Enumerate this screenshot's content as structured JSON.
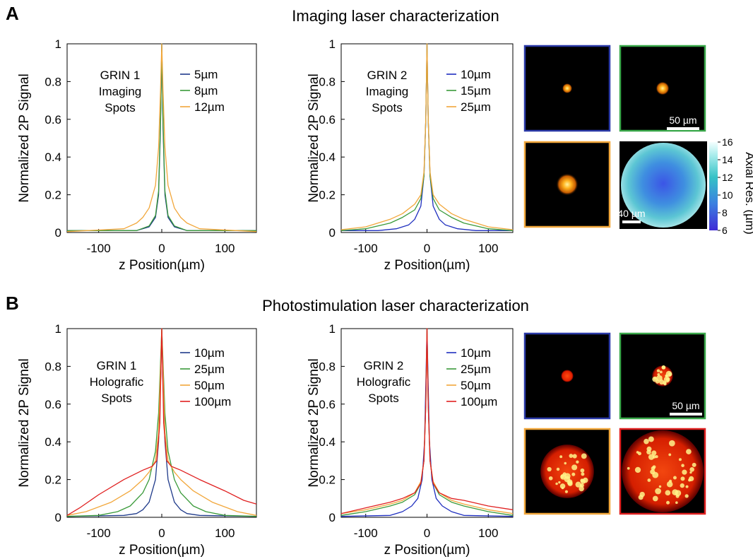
{
  "panels": {
    "A": {
      "letter": "A",
      "title": "Imaging laser characterization"
    },
    "B": {
      "letter": "B",
      "title": "Photostimulation laser characterization"
    }
  },
  "chart_data": [
    {
      "type": "line",
      "id": "a1",
      "ylabel": "Normalized 2P Signal",
      "xlabel": "z Position(µm)",
      "xlim": [
        -150,
        150
      ],
      "ylim": [
        0,
        1
      ],
      "xticks": [
        -100,
        0,
        100
      ],
      "yticks": [
        0,
        0.2,
        0.4,
        0.6,
        0.8,
        1
      ],
      "ytick_labels": [
        "0",
        "0.2",
        "0.4",
        "0.6",
        "0.8",
        "1"
      ],
      "annotation": [
        "GRIN 1",
        "Imaging",
        "Spots"
      ],
      "series": [
        {
          "name": "5µm",
          "color": "#1f3a8a",
          "x": [
            -150,
            -40,
            -20,
            -10,
            -5,
            -2,
            0,
            2,
            5,
            10,
            20,
            40,
            150
          ],
          "y": [
            0.01,
            0.01,
            0.03,
            0.08,
            0.2,
            0.55,
            1,
            0.55,
            0.2,
            0.08,
            0.03,
            0.01,
            0.01
          ]
        },
        {
          "name": "8µm",
          "color": "#3a9a3a",
          "x": [
            -150,
            -40,
            -20,
            -10,
            -5,
            -2,
            0,
            2,
            5,
            10,
            20,
            40,
            150
          ],
          "y": [
            0.01,
            0.01,
            0.035,
            0.09,
            0.22,
            0.58,
            1,
            0.58,
            0.22,
            0.09,
            0.035,
            0.01,
            0.01
          ]
        },
        {
          "name": "12µm",
          "color": "#f2a73b",
          "x": [
            -150,
            -60,
            -40,
            -30,
            -20,
            -10,
            -5,
            -2,
            0,
            2,
            5,
            10,
            20,
            30,
            40,
            60,
            150
          ],
          "y": [
            0.005,
            0.02,
            0.05,
            0.08,
            0.13,
            0.25,
            0.45,
            0.75,
            1,
            0.75,
            0.45,
            0.25,
            0.13,
            0.08,
            0.05,
            0.02,
            0.005
          ]
        }
      ]
    },
    {
      "type": "line",
      "id": "a2",
      "ylabel": "Normalized 2P Signal",
      "xlabel": "z Position(µm)",
      "xlim": [
        -140,
        140
      ],
      "ylim": [
        0,
        1
      ],
      "xticks": [
        -100,
        0,
        100
      ],
      "yticks": [
        0,
        0.2,
        0.4,
        0.6,
        0.8,
        1
      ],
      "ytick_labels": [
        "0",
        "0.2",
        "0.4",
        "0.6",
        "0.8",
        "1"
      ],
      "annotation": [
        "GRIN 2",
        "Imaging",
        "Spots"
      ],
      "series": [
        {
          "name": "10µm",
          "color": "#1f2fbf",
          "x": [
            -140,
            -80,
            -50,
            -30,
            -20,
            -10,
            -5,
            -2,
            0,
            2,
            5,
            10,
            20,
            30,
            50,
            80,
            140
          ],
          "y": [
            0.01,
            0.01,
            0.02,
            0.04,
            0.07,
            0.14,
            0.3,
            0.6,
            1,
            0.6,
            0.3,
            0.14,
            0.07,
            0.04,
            0.02,
            0.01,
            0.01
          ]
        },
        {
          "name": "15µm",
          "color": "#3a9a3a",
          "x": [
            -140,
            -100,
            -60,
            -40,
            -20,
            -10,
            -5,
            -2,
            0,
            2,
            5,
            10,
            20,
            40,
            60,
            100,
            140
          ],
          "y": [
            0.01,
            0.02,
            0.05,
            0.08,
            0.12,
            0.18,
            0.3,
            0.6,
            1,
            0.6,
            0.3,
            0.18,
            0.12,
            0.08,
            0.05,
            0.02,
            0.01
          ]
        },
        {
          "name": "25µm",
          "color": "#f2a73b",
          "x": [
            -140,
            -100,
            -60,
            -40,
            -20,
            -10,
            -5,
            -2,
            0,
            2,
            5,
            10,
            20,
            40,
            60,
            100,
            140
          ],
          "y": [
            0.015,
            0.03,
            0.07,
            0.1,
            0.15,
            0.2,
            0.32,
            0.6,
            1,
            0.6,
            0.32,
            0.2,
            0.15,
            0.1,
            0.07,
            0.03,
            0.015
          ]
        }
      ]
    },
    {
      "type": "line",
      "id": "b1",
      "ylabel": "Normalized 2P Signal",
      "xlabel": "z Position(µm)",
      "xlim": [
        -150,
        150
      ],
      "ylim": [
        0,
        1
      ],
      "xticks": [
        -100,
        0,
        100
      ],
      "yticks": [
        0,
        0.2,
        0.4,
        0.6,
        0.8,
        1
      ],
      "ytick_labels": [
        "0",
        "0.2",
        "0.4",
        "0.6",
        "0.8",
        "1"
      ],
      "annotation": [
        "GRIN 1",
        "Holografic",
        "Spots"
      ],
      "series": [
        {
          "name": "10µm",
          "color": "#1f3a8a",
          "x": [
            -150,
            -60,
            -40,
            -30,
            -20,
            -10,
            -5,
            -2,
            0,
            2,
            5,
            10,
            20,
            30,
            40,
            60,
            150
          ],
          "y": [
            0.005,
            0.01,
            0.02,
            0.04,
            0.08,
            0.2,
            0.4,
            0.7,
            1,
            0.7,
            0.4,
            0.2,
            0.08,
            0.04,
            0.02,
            0.01,
            0.005
          ]
        },
        {
          "name": "25µm",
          "color": "#3a9a3a",
          "x": [
            -150,
            -100,
            -70,
            -50,
            -30,
            -20,
            -10,
            -5,
            0,
            5,
            10,
            20,
            30,
            50,
            70,
            100,
            150
          ],
          "y": [
            0.005,
            0.01,
            0.03,
            0.06,
            0.13,
            0.2,
            0.35,
            0.55,
            1,
            0.55,
            0.35,
            0.2,
            0.13,
            0.06,
            0.03,
            0.01,
            0.005
          ]
        },
        {
          "name": "50µm",
          "color": "#f2a73b",
          "x": [
            -150,
            -120,
            -80,
            -50,
            -30,
            -20,
            -10,
            -5,
            0,
            5,
            10,
            20,
            30,
            50,
            80,
            120,
            150
          ],
          "y": [
            0.01,
            0.03,
            0.08,
            0.14,
            0.2,
            0.24,
            0.3,
            0.45,
            1,
            0.45,
            0.3,
            0.24,
            0.2,
            0.14,
            0.08,
            0.03,
            0.01
          ]
        },
        {
          "name": "100µm",
          "color": "#e02020",
          "x": [
            -150,
            -130,
            -100,
            -60,
            -30,
            -15,
            -8,
            -3,
            0,
            3,
            8,
            15,
            30,
            60,
            100,
            130,
            150
          ],
          "y": [
            0.01,
            0.05,
            0.12,
            0.2,
            0.25,
            0.27,
            0.3,
            0.5,
            1,
            0.5,
            0.3,
            0.27,
            0.25,
            0.2,
            0.14,
            0.09,
            0.07
          ]
        }
      ]
    },
    {
      "type": "line",
      "id": "b2",
      "ylabel": "Normalized 2P Signal",
      "xlabel": "z Position(µm)",
      "xlim": [
        -140,
        140
      ],
      "ylim": [
        0,
        1
      ],
      "xticks": [
        -100,
        0,
        100
      ],
      "yticks": [
        0,
        0.2,
        0.4,
        0.6,
        0.8,
        1
      ],
      "ytick_labels": [
        "0",
        "0.2",
        "0.4",
        "0.6",
        "0.8",
        "1"
      ],
      "annotation": [
        "GRIN 2",
        "Holografic",
        "Spots"
      ],
      "series": [
        {
          "name": "10µm",
          "color": "#1f2fbf",
          "x": [
            -140,
            -60,
            -40,
            -25,
            -15,
            -8,
            -4,
            -2,
            0,
            2,
            4,
            8,
            15,
            25,
            40,
            60,
            140
          ],
          "y": [
            0.005,
            0.01,
            0.03,
            0.06,
            0.1,
            0.2,
            0.4,
            0.7,
            1,
            0.7,
            0.4,
            0.2,
            0.1,
            0.06,
            0.03,
            0.01,
            0.005
          ]
        },
        {
          "name": "25µm",
          "color": "#3a9a3a",
          "x": [
            -140,
            -100,
            -60,
            -40,
            -20,
            -10,
            -5,
            -2,
            0,
            2,
            5,
            10,
            20,
            40,
            60,
            100,
            140
          ],
          "y": [
            0.01,
            0.03,
            0.06,
            0.08,
            0.12,
            0.18,
            0.3,
            0.6,
            1,
            0.6,
            0.3,
            0.18,
            0.12,
            0.08,
            0.06,
            0.03,
            0.01
          ]
        },
        {
          "name": "50µm",
          "color": "#f2a73b",
          "x": [
            -140,
            -100,
            -60,
            -40,
            -20,
            -10,
            -5,
            -2,
            0,
            2,
            5,
            10,
            20,
            40,
            60,
            100,
            140
          ],
          "y": [
            0.02,
            0.04,
            0.07,
            0.09,
            0.13,
            0.19,
            0.3,
            0.6,
            1,
            0.6,
            0.3,
            0.19,
            0.13,
            0.09,
            0.07,
            0.04,
            0.02
          ]
        },
        {
          "name": "100µm",
          "color": "#e02020",
          "x": [
            -140,
            -100,
            -60,
            -40,
            -20,
            -10,
            -5,
            -2,
            0,
            2,
            5,
            10,
            20,
            40,
            60,
            100,
            140
          ],
          "y": [
            0.02,
            0.05,
            0.08,
            0.1,
            0.13,
            0.18,
            0.3,
            0.6,
            1,
            0.6,
            0.3,
            0.18,
            0.13,
            0.1,
            0.09,
            0.06,
            0.04
          ]
        }
      ]
    }
  ],
  "images": {
    "A": {
      "tiles": [
        {
          "name": "spot-5um",
          "frame_color": "#2b3aa8",
          "spot_size": 0.12,
          "speckled": false
        },
        {
          "name": "spot-8um",
          "frame_color": "#3aa84a",
          "spot_size": 0.16,
          "speckled": false
        },
        {
          "name": "spot-12um",
          "frame_color": "#f2a73b",
          "spot_size": 0.26,
          "speckled": false
        }
      ],
      "scalebar_label": "50 µm",
      "axial_map": {
        "scalebar_label": "40 µm",
        "colorbar_label": "Axial Res. (µm)",
        "colorbar_ticks": [
          "6",
          "8",
          "10",
          "12",
          "14",
          "16"
        ]
      }
    },
    "B": {
      "tiles": [
        {
          "name": "holo-10um",
          "frame_color": "#2b3aa8",
          "spot_size": 0.14,
          "speckled": false
        },
        {
          "name": "holo-25um",
          "frame_color": "#3aa84a",
          "spot_size": 0.24,
          "speckled": true
        },
        {
          "name": "holo-50um",
          "frame_color": "#f2a73b",
          "spot_size": 0.62,
          "speckled": true
        },
        {
          "name": "holo-100um",
          "frame_color": "#e02020",
          "spot_size": 0.95,
          "speckled": true
        }
      ],
      "scalebar_label": "50 µm"
    }
  }
}
